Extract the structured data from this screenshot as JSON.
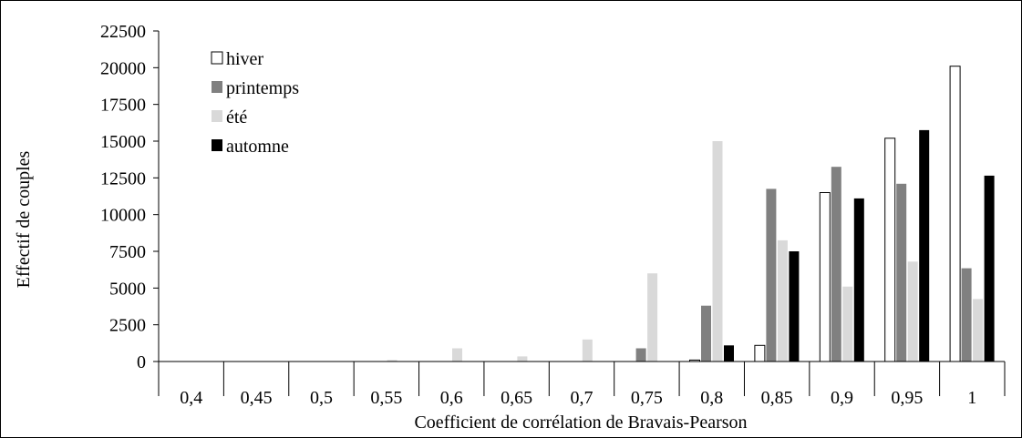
{
  "chart_data": {
    "type": "bar",
    "xlabel": "Coefficient de corrélation de Bravais-Pearson",
    "ylabel": "Effectif de couples",
    "ylim": [
      0,
      22500
    ],
    "yticks": [
      0,
      2500,
      5000,
      7500,
      10000,
      12500,
      15000,
      17500,
      20000,
      22500
    ],
    "ytick_labels": [
      "0",
      "2500",
      "5000",
      "7500",
      "10000",
      "12500",
      "15000",
      "17500",
      "20000",
      "22500"
    ],
    "categories": [
      "0,4",
      "0,45",
      "0,5",
      "0,55",
      "0,6",
      "0,65",
      "0,7",
      "0,75",
      "0,8",
      "0,85",
      "0,9",
      "0,95",
      "1"
    ],
    "legend_position": "top-left",
    "grid": false,
    "series": [
      {
        "name": "hiver",
        "color": "#ffffff",
        "values": [
          0,
          0,
          0,
          0,
          0,
          0,
          0,
          0,
          100,
          1100,
          11500,
          15200,
          20100
        ]
      },
      {
        "name": "printemps",
        "color": "#808080",
        "values": [
          0,
          0,
          0,
          0,
          0,
          0,
          0,
          900,
          3800,
          11750,
          13250,
          12100,
          6350
        ]
      },
      {
        "name": "été",
        "color": "#d9d9d9",
        "values": [
          0,
          0,
          0,
          100,
          900,
          350,
          1500,
          6000,
          15000,
          8250,
          5100,
          6800,
          4250
        ]
      },
      {
        "name": "automne",
        "color": "#000000",
        "values": [
          0,
          0,
          0,
          0,
          0,
          0,
          0,
          0,
          1100,
          7500,
          11100,
          15750,
          12650
        ]
      }
    ]
  }
}
